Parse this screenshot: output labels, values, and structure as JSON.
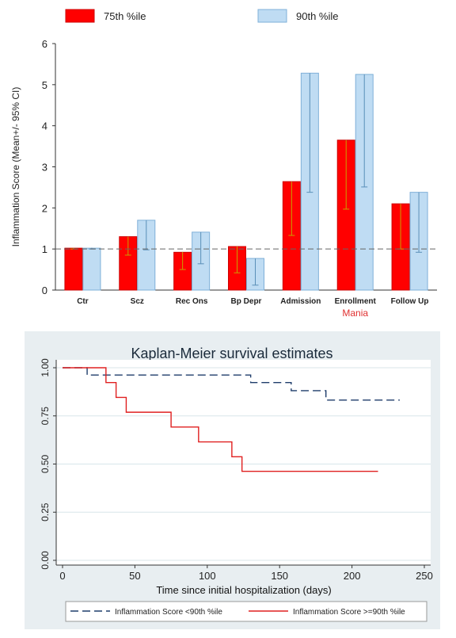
{
  "chart_data": [
    {
      "type": "bar",
      "legend_placement": "top",
      "categories": [
        "Ctr",
        "Scz",
        "Rec Ons",
        "Bp Depr",
        "Admission",
        "Enrollment",
        "Follow Up"
      ],
      "group_label": "Mania",
      "ylabel": "Inflammation Score (Mean+/- 95% CI)",
      "ylim": [
        0,
        6
      ],
      "yticks": [
        0,
        1,
        2,
        3,
        4,
        5,
        6
      ],
      "reference_line": 1,
      "series": [
        {
          "name": "75th %ile",
          "color": "#ff0000",
          "values": [
            1.02,
            1.3,
            0.92,
            1.06,
            2.64,
            3.65,
            2.1
          ],
          "ci_low": [
            1.0,
            0.85,
            0.5,
            0.42,
            1.33,
            1.97,
            1.0
          ],
          "ci_high": [
            1.03,
            1.3,
            0.93,
            1.06,
            2.64,
            3.65,
            2.1
          ]
        },
        {
          "name": "90th %ile",
          "color": "#bfdcf3",
          "values": [
            1.02,
            1.7,
            1.41,
            0.77,
            5.28,
            5.25,
            2.38
          ],
          "ci_low": [
            1.0,
            0.98,
            0.64,
            0.12,
            2.38,
            2.51,
            0.92
          ],
          "ci_high": [
            1.03,
            1.7,
            1.41,
            0.77,
            5.28,
            5.25,
            2.38
          ]
        }
      ]
    },
    {
      "type": "line",
      "step": true,
      "title": "Kaplan-Meier survival estimates",
      "xlabel": "Time since initial hospitalization (days)",
      "xlim": [
        0,
        250
      ],
      "xticks": [
        0,
        50,
        100,
        150,
        200,
        250
      ],
      "ylim": [
        0,
        1
      ],
      "yticks": [
        "0.00",
        "0.25",
        "0.50",
        "0.75",
        "1.00"
      ],
      "grid": true,
      "legend_placement": "bottom",
      "series": [
        {
          "name": "Inflammation Score <90th %ile",
          "color": "#1f3d6b",
          "dash": true,
          "x": [
            0,
            17,
            130,
            158,
            182,
            233
          ],
          "y": [
            1.0,
            0.962,
            0.923,
            0.881,
            0.832,
            0.832
          ]
        },
        {
          "name": "Inflammation Score >=90th %ile",
          "color": "#e02020",
          "dash": false,
          "x": [
            0,
            30,
            37,
            44,
            75,
            94,
            117,
            124,
            218
          ],
          "y": [
            1.0,
            0.923,
            0.846,
            0.769,
            0.692,
            0.615,
            0.538,
            0.462,
            0.462
          ]
        }
      ]
    }
  ]
}
